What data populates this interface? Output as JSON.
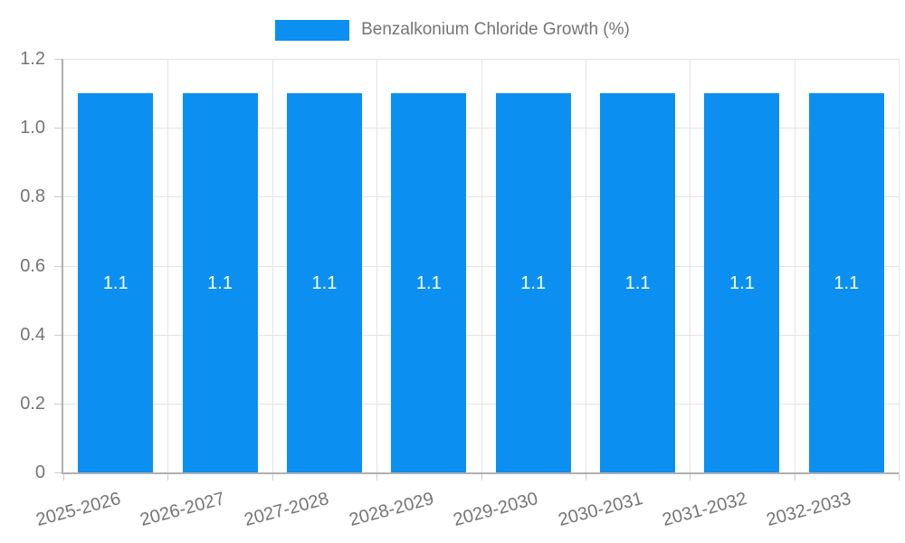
{
  "legend": {
    "label": "Benzalkonium Chloride Growth (%)"
  },
  "chart_data": {
    "type": "bar",
    "title": "Benzalkonium Chloride Growth (%)",
    "series_name": "Benzalkonium Chloride Growth (%)",
    "categories": [
      "2025-2026",
      "2026-2027",
      "2027-2028",
      "2028-2029",
      "2029-2030",
      "2030-2031",
      "2031-2032",
      "2032-2033"
    ],
    "values": [
      1.1,
      1.1,
      1.1,
      1.1,
      1.1,
      1.1,
      1.1,
      1.1
    ],
    "bar_value_labels": [
      "1.1",
      "1.1",
      "1.1",
      "1.1",
      "1.1",
      "1.1",
      "1.1",
      "1.1"
    ],
    "xlabel": "",
    "ylabel": "",
    "ylim": [
      0,
      1.2
    ],
    "yticks": [
      0,
      0.2,
      0.4,
      0.6,
      0.8,
      1.0,
      1.2
    ],
    "ytick_labels": [
      "0",
      "0.2",
      "0.4",
      "0.6",
      "0.8",
      "1.0",
      "1.2"
    ],
    "grid": true,
    "legend_position": "top",
    "x_label_rotation_deg": -15,
    "colors": {
      "bar": "#0b90f2",
      "grid": "#e4e4e4",
      "axis": "#b0b0b0",
      "tick": "#cccccc",
      "text": "#757575",
      "bar_label": "#ffffff"
    }
  }
}
